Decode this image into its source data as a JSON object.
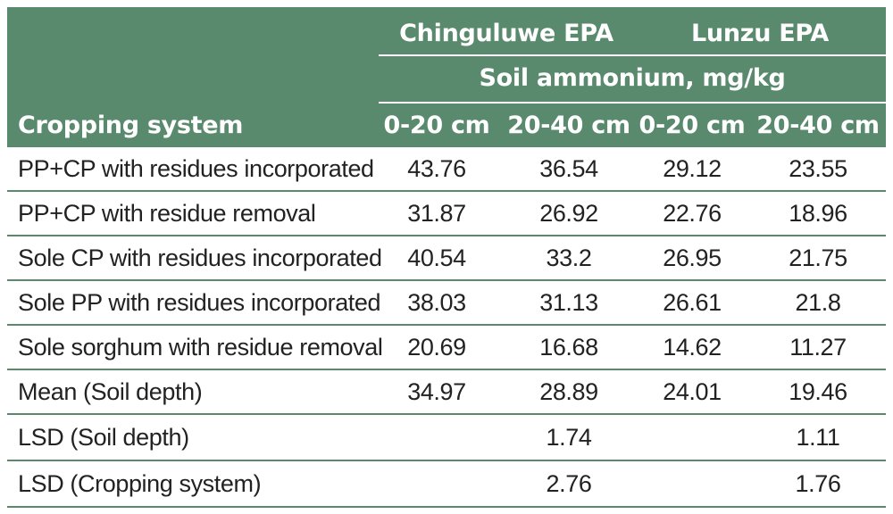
{
  "header": {
    "site1": "Chinguluwe EPA",
    "site2": "Lunzu EPA",
    "unit": "Soil ammonium, mg/kg",
    "first_col": "Cropping system",
    "depths": [
      "0-20 cm",
      "20-40 cm",
      "0-20 cm",
      "20-40 cm"
    ]
  },
  "rows": [
    {
      "name": "PP+CP with residues incorporated",
      "values": [
        "43.76",
        "36.54",
        "29.12",
        "23.55"
      ]
    },
    {
      "name": "PP+CP with residue removal",
      "values": [
        "31.87",
        "26.92",
        "22.76",
        "18.96"
      ]
    },
    {
      "name": "Sole CP with residues incorporated",
      "values": [
        "40.54",
        "33.2",
        "26.95",
        "21.75"
      ]
    },
    {
      "name": "Sole PP with residues incorporated",
      "values": [
        "38.03",
        "31.13",
        "26.61",
        "21.8"
      ]
    },
    {
      "name": "Sole sorghum with residue removal",
      "values": [
        "20.69",
        "16.68",
        "14.62",
        "11.27"
      ]
    },
    {
      "name": "Mean (Soil depth)",
      "values": [
        "34.97",
        "28.89",
        "24.01",
        "19.46"
      ]
    },
    {
      "name": "LSD (Soil depth)",
      "values": [
        "",
        "1.74",
        "",
        "1.11"
      ]
    },
    {
      "name": "LSD (Cropping system)",
      "values": [
        "",
        "2.76",
        "",
        "1.76"
      ]
    }
  ],
  "colors": {
    "header_bg": "#5a8a6e",
    "header_text": "#ffffff",
    "rule": "#5a8a6e",
    "body_text": "#222222"
  }
}
